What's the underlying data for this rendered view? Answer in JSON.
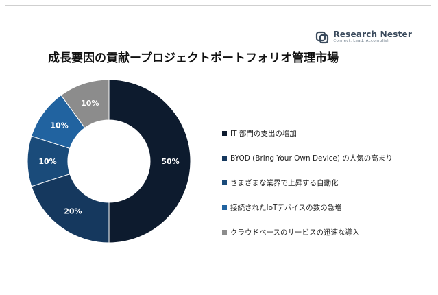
{
  "brand": {
    "name": "Research Nester",
    "tagline": "Connect. Lead. Accomplish",
    "icon": "research-nester-logo-icon"
  },
  "chart_data": {
    "type": "pie",
    "donut": true,
    "title": "成長要因の貢献ープロジェクトポートフォリオ管理市場",
    "categories": [
      "IT 部門の支出の増加",
      "BYOD (Bring Your Own Device) の人気の高まり",
      "さまざまな業界で上昇する自動化",
      "接続されたIoTデバイスの数の急増",
      "クラウドベースのサービスの迅速な導入"
    ],
    "values": [
      50,
      20,
      10,
      10,
      10
    ],
    "labels": [
      "50%",
      "20%",
      "10%",
      "10%",
      "10%"
    ],
    "colors": [
      "#0d1b2e",
      "#15385e",
      "#1a4b7a",
      "#2163a0",
      "#8c8c8c"
    ],
    "legend_position": "right"
  }
}
